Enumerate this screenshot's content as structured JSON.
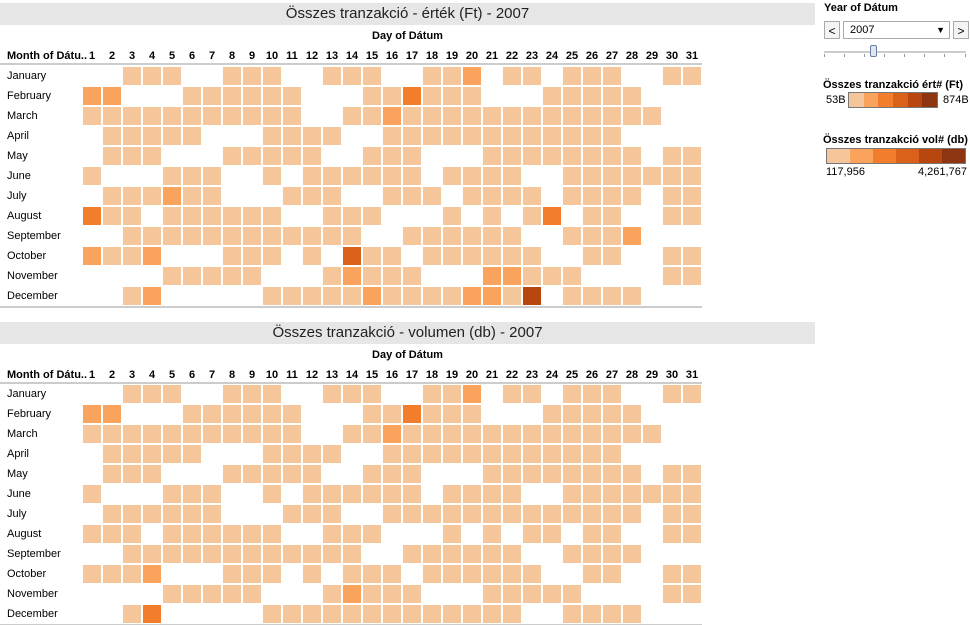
{
  "charts_meta": [
    {
      "title": "Összes tranzakció - érték (Ft) - 2007",
      "day_axis_label": "Day of Dátum",
      "row_header": "Month of Dátu.."
    },
    {
      "title": "Összes tranzakció - volumen (db) - 2007",
      "day_axis_label": "Day of Dátum",
      "row_header": "Month of Dátu.."
    }
  ],
  "months": [
    "January",
    "February",
    "March",
    "April",
    "May",
    "June",
    "July",
    "August",
    "September",
    "October",
    "November",
    "December"
  ],
  "days": [
    "1",
    "2",
    "3",
    "4",
    "5",
    "6",
    "7",
    "8",
    "9",
    "10",
    "11",
    "12",
    "13",
    "14",
    "15",
    "16",
    "17",
    "18",
    "19",
    "20",
    "21",
    "22",
    "23",
    "24",
    "25",
    "26",
    "27",
    "28",
    "29",
    "30",
    "31"
  ],
  "palette": [
    "#f5c69a",
    "#f9a35c",
    "#f27e2c",
    "#d9611a",
    "#b8470f",
    "#8c3510"
  ],
  "sidebar": {
    "year_filter_title": "Year of Dátum",
    "year_value": "2007",
    "prev_label": "<",
    "next_label": ">",
    "legend1_title": "Összes tranzakció ért# (Ft)",
    "legend1_min": "53B",
    "legend1_max": "874B",
    "legend2_title": "Összes tranzakció vol# (db)",
    "legend2_min": "117,956",
    "legend2_max": "4,261,767"
  },
  "chart_data": [
    {
      "type": "heatmap",
      "title": "Összes tranzakció - érték (Ft) - 2007",
      "xlabel": "Day of Dátum",
      "ylabel": "Month of Dátum",
      "note": "values are color levels 1-6 (light to dark); 0 = no data",
      "rows": [
        "0011100111001110011201101110011",
        "2200011111100011311100011111000",
        "1111111111100112111111111111100",
        "0111110001111001111111111110000",
        "0111000111110011100011111111011",
        "1000111001011111101111001111111",
        "0111211000111001110111101111011",
        "3110111111001110001010130110011",
        "0011111111111100111111001112000",
        "2112000111010411011111100110011",
        "0000111110001211100022111000011",
        "0012000001111121111221501111000"
      ]
    },
    {
      "type": "heatmap",
      "title": "Összes tranzakció - volumen (db) - 2007",
      "xlabel": "Day of Dátum",
      "ylabel": "Month of Dátum",
      "note": "values are color levels 1-6 (light to dark); 0 = no data",
      "rows": [
        "0011100111001110011201101110011",
        "2200011111100011311100011111000",
        "1111111111100112111111111111100",
        "0111110001111001111111111110000",
        "0111000111110011100011111111011",
        "1000111001011111101111001111111",
        "0111111000111001111111111111011",
        "1110111111001110001010110110011",
        "0011111111111100111111001111000",
        "1112000111010111011111100110011",
        "0000111110001211100011111000011",
        "0013000001111111111111001111000"
      ]
    }
  ]
}
